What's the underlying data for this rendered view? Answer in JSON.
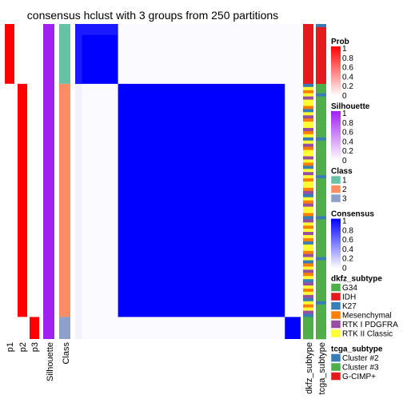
{
  "chart_data": {
    "type": "heatmap",
    "title": "consensus hclust with 3 groups from 250 partitions",
    "n_samples": 100,
    "classes": [
      {
        "id": 1,
        "n": 19,
        "color": "#66C2A5"
      },
      {
        "id": 2,
        "n": 74,
        "color": "#FC8D62"
      },
      {
        "id": 3,
        "n": 7,
        "color": "#8DA0CB"
      }
    ],
    "prob_tracks": [
      {
        "name": "p1",
        "values_by_class": [
          1,
          0,
          0
        ]
      },
      {
        "name": "p2",
        "values_by_class": [
          0,
          1,
          0
        ]
      },
      {
        "name": "p3",
        "values_by_class": [
          0,
          0,
          1
        ]
      }
    ],
    "silhouette_label": "Silhouette",
    "silhouette_value": 1,
    "class_label": "Class",
    "consensus_blocks": [
      {
        "rows": "class 1",
        "cols": "class 1",
        "value": 1
      },
      {
        "rows": "class 2",
        "cols": "class 2",
        "value": 1
      },
      {
        "rows": "class 3",
        "cols": "class 3",
        "value": 1
      },
      {
        "rows": "class 1",
        "cols": "first 3 samples",
        "value": 0.9
      },
      {
        "rows": "off-diagonal",
        "cols": "off-diagonal",
        "value": 0
      }
    ],
    "annotation_tracks": [
      {
        "name": "dkfz_subtype",
        "categories": [
          "G34",
          "IDH",
          "K27",
          "Mesenchymal",
          "RTK I PDGFRA",
          "RTK II Classic"
        ]
      },
      {
        "name": "tcga_subtype",
        "categories": [
          "Cluster #2",
          "Cluster #3",
          "G-CIMP+"
        ]
      }
    ],
    "legends": [
      {
        "title": "Prob",
        "ticks": [
          "1",
          "0.8",
          "0.6",
          "0.4",
          "0.2",
          "0"
        ],
        "gradient": [
          "#FF0000",
          "#FFFFFF"
        ]
      },
      {
        "title": "Silhouette",
        "ticks": [
          "1",
          "0.8",
          "0.6",
          "0.4",
          "0.2",
          "0"
        ],
        "gradient": [
          "#A020F0",
          "#FFFFFF"
        ]
      },
      {
        "title": "Class",
        "items": [
          "1",
          "2",
          "3"
        ],
        "colors": [
          "#66C2A5",
          "#FC8D62",
          "#8DA0CB"
        ]
      },
      {
        "title": "Consensus",
        "ticks": [
          "1",
          "0.8",
          "0.6",
          "0.4",
          "0.2",
          "0"
        ],
        "gradient": [
          "#0000FF",
          "#FFFFFF"
        ]
      },
      {
        "title": "dkfz_subtype",
        "items": [
          "G34",
          "IDH",
          "K27",
          "Mesenchymal",
          "RTK I PDGFRA",
          "RTK II Classic"
        ],
        "colors": [
          "#4DAF4A",
          "#E41A1C",
          "#377EB8",
          "#FF7F00",
          "#984EA3",
          "#FFFF33"
        ]
      },
      {
        "title": "tcga_subtype",
        "items": [
          "Cluster #2",
          "Cluster #3",
          "G-CIMP+"
        ],
        "colors": [
          "#377EB8",
          "#4DAF4A",
          "#E41A1C"
        ]
      }
    ]
  }
}
